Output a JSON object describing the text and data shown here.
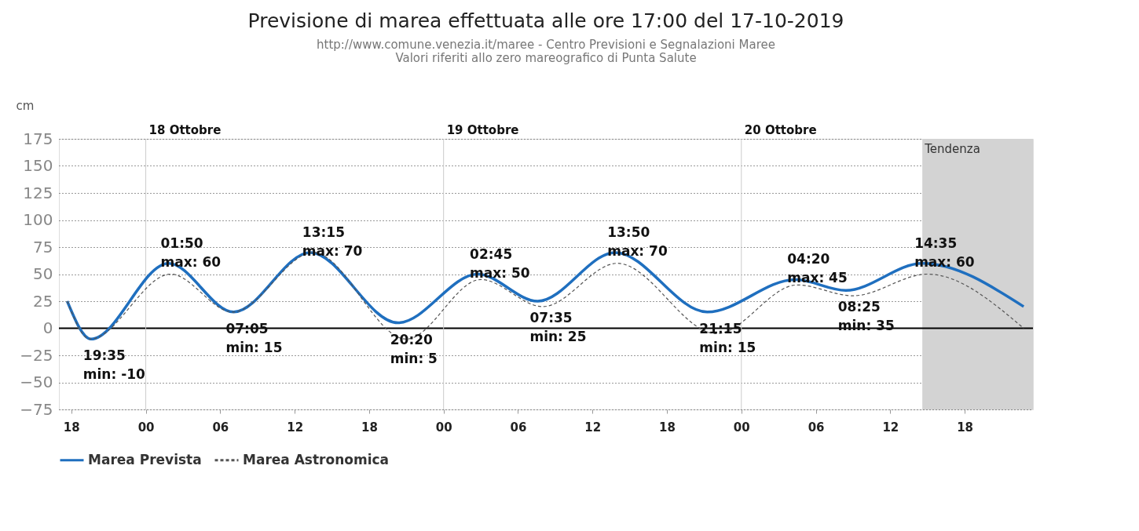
{
  "chart_data": {
    "type": "line",
    "title": "Previsione di marea effettuata alle ore 17:00 del 17-10-2019",
    "subtitle": "http://www.comune.venezia.it/maree - Centro Previsioni e Segnalazioni Maree\nValori riferiti allo zero mareografico di Punta Salute",
    "ylabel": "cm",
    "series": [
      {
        "name": "Marea Prevista",
        "color": "#1f6fbf",
        "line_style": "solid",
        "x": [
          "2019-10-17T17:40",
          "2019-10-17T19:35",
          "2019-10-18T01:50",
          "2019-10-18T07:05",
          "2019-10-18T13:15",
          "2019-10-18T20:20",
          "2019-10-19T02:45",
          "2019-10-19T07:35",
          "2019-10-19T13:50",
          "2019-10-19T21:15",
          "2019-10-20T04:20",
          "2019-10-20T08:25",
          "2019-10-20T14:35",
          "2019-10-20T22:45"
        ],
        "values": [
          25,
          -10,
          60,
          15,
          70,
          5,
          50,
          25,
          70,
          15,
          45,
          35,
          60,
          20
        ]
      },
      {
        "name": "Marea Astronomica",
        "color": "#555555",
        "line_style": "dashed",
        "x": [
          "2019-10-17T17:40",
          "2019-10-17T19:30",
          "2019-10-18T02:00",
          "2019-10-18T07:00",
          "2019-10-18T13:30",
          "2019-10-18T21:00",
          "2019-10-19T03:00",
          "2019-10-19T08:00",
          "2019-10-19T14:00",
          "2019-10-19T22:00",
          "2019-10-20T04:30",
          "2019-10-20T09:00",
          "2019-10-20T15:00",
          "2019-10-20T22:45"
        ],
        "values": [
          25,
          -10,
          50,
          15,
          70,
          -10,
          45,
          20,
          60,
          -5,
          40,
          30,
          50,
          0
        ]
      }
    ],
    "xlim": [
      "2019-10-17T17:00",
      "2019-10-20T23:30"
    ],
    "xticks": [
      {
        "value": "2019-10-17T18:00",
        "label": "18"
      },
      {
        "value": "2019-10-18T00:00",
        "label": "00"
      },
      {
        "value": "2019-10-18T06:00",
        "label": "06"
      },
      {
        "value": "2019-10-18T12:00",
        "label": "12"
      },
      {
        "value": "2019-10-18T18:00",
        "label": "18"
      },
      {
        "value": "2019-10-19T00:00",
        "label": "00"
      },
      {
        "value": "2019-10-19T06:00",
        "label": "06"
      },
      {
        "value": "2019-10-19T12:00",
        "label": "12"
      },
      {
        "value": "2019-10-19T18:00",
        "label": "18"
      },
      {
        "value": "2019-10-20T00:00",
        "label": "00"
      },
      {
        "value": "2019-10-20T06:00",
        "label": "06"
      },
      {
        "value": "2019-10-20T12:00",
        "label": "12"
      },
      {
        "value": "2019-10-20T18:00",
        "label": "18"
      }
    ],
    "ylim": [
      -75,
      175
    ],
    "yticks": [
      -75,
      -50,
      -25,
      0,
      25,
      50,
      75,
      100,
      125,
      150,
      175
    ],
    "grid": "y",
    "legend": "bottom",
    "ref_lines": [
      {
        "axis": "y",
        "value": 0,
        "label": null,
        "color": "#000000"
      },
      {
        "axis": "x",
        "value": "2019-10-18T00:00",
        "label": "18 Ottobre",
        "color": "#cccccc"
      },
      {
        "axis": "x",
        "value": "2019-10-19T00:00",
        "label": "19 Ottobre",
        "color": "#cccccc"
      },
      {
        "axis": "x",
        "value": "2019-10-20T00:00",
        "label": "20 Ottobre",
        "color": "#cccccc"
      }
    ],
    "bands": [
      {
        "axis": "x",
        "from": "2019-10-20T14:35",
        "to": "2019-10-20T23:30",
        "label": "Tendenza",
        "color": "#d3d3d3"
      }
    ],
    "annotations": [
      {
        "text": "19:35\nmin: -10",
        "x": "2019-10-17T19:35",
        "y": -10
      },
      {
        "text": "01:50\nmax: 60",
        "x": "2019-10-18T01:50",
        "y": 60
      },
      {
        "text": "07:05\nmin: 15",
        "x": "2019-10-18T07:05",
        "y": 15
      },
      {
        "text": "13:15\nmax: 70",
        "x": "2019-10-18T13:15",
        "y": 70
      },
      {
        "text": "20:20\nmin: 5",
        "x": "2019-10-18T20:20",
        "y": 5
      },
      {
        "text": "02:45\nmax: 50",
        "x": "2019-10-19T02:45",
        "y": 50
      },
      {
        "text": "07:35\nmin: 25",
        "x": "2019-10-19T07:35",
        "y": 25
      },
      {
        "text": "13:50\nmax: 70",
        "x": "2019-10-19T13:50",
        "y": 70
      },
      {
        "text": "21:15\nmin: 15",
        "x": "2019-10-19T21:15",
        "y": 15
      },
      {
        "text": "04:20\nmax: 45",
        "x": "2019-10-20T04:20",
        "y": 45
      },
      {
        "text": "08:25\nmin: 35",
        "x": "2019-10-20T08:25",
        "y": 35
      },
      {
        "text": "14:35\nmax: 60",
        "x": "2019-10-20T14:35",
        "y": 60
      }
    ]
  }
}
